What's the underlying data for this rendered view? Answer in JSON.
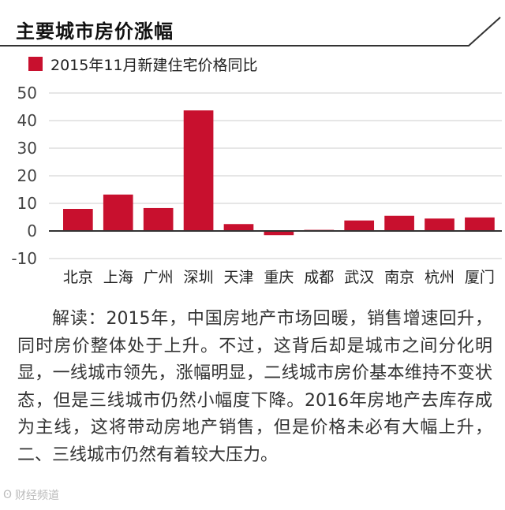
{
  "title": "主要城市房价涨幅",
  "legend": {
    "label": "2015年11月新建住宅价格同比"
  },
  "colors": {
    "bar": "#c8102e",
    "axis": "#333333",
    "grid": "#cccccc"
  },
  "chart_data": {
    "type": "bar",
    "categories": [
      "北京",
      "上海",
      "广州",
      "深圳",
      "天津",
      "重庆",
      "成都",
      "武汉",
      "南京",
      "杭州",
      "厦门"
    ],
    "series": [
      {
        "name": "2015年11月新建住宅价格同比",
        "values": [
          8.0,
          13.2,
          8.3,
          43.7,
          2.5,
          -1.5,
          0.4,
          3.8,
          5.5,
          4.5,
          4.9
        ]
      }
    ],
    "yticks": [
      50,
      40,
      30,
      20,
      10,
      0,
      -10
    ],
    "ylim": [
      -10,
      50
    ],
    "grid": true,
    "legend_position": "top-left"
  },
  "commentary": "解读：2015年，中国房地产市场回暖，销售增速回升，同时房价整体处于上升。不过，这背后却是城市之间分化明显，一线城市领先，涨幅明显，二线城市房价基本维持不变状态，但是三线城市仍然小幅度下降。2016年房地产去库存成为主线，这将带动房地产销售，但是价格未必有大幅上升，二、三线城市仍然有着较大压力。",
  "watermark": {
    "icon": "weibo-icon",
    "text": "财经频道"
  }
}
